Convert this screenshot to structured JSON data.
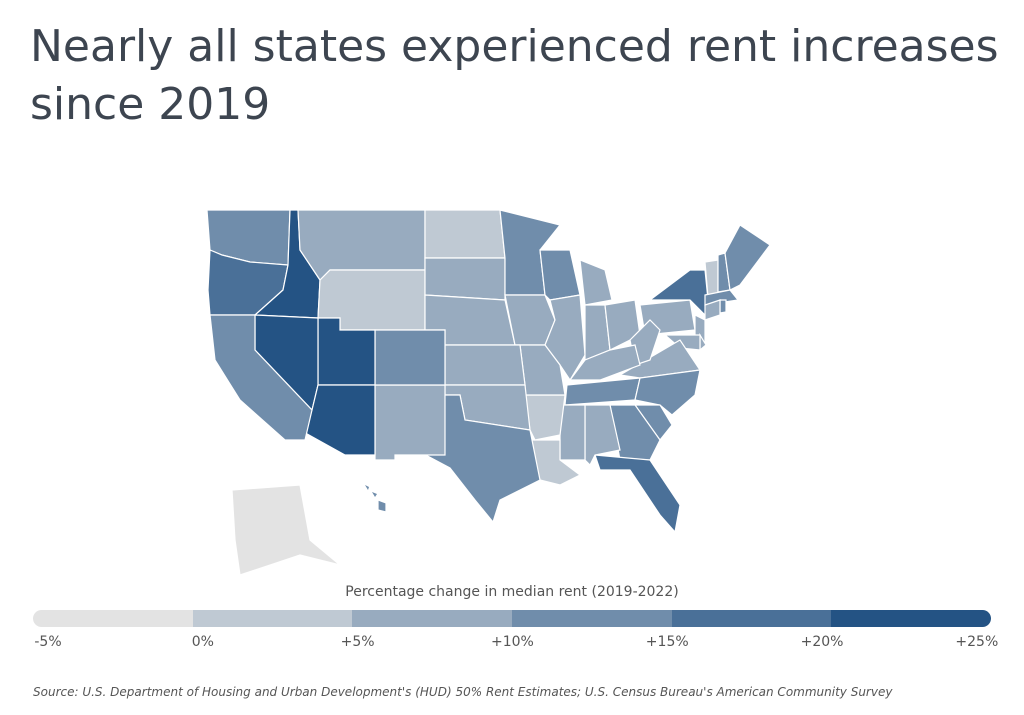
{
  "title": "Nearly all states experienced rent increases since 2019",
  "legend": {
    "title": "Percentage change in median rent (2019-2022)",
    "ticks": [
      "-5%",
      "0%",
      "+5%",
      "+10%",
      "+15%",
      "+20%",
      "+25%"
    ],
    "colors": [
      "#e3e3e3",
      "#bfc9d3",
      "#98abbf",
      "#708dab",
      "#4a7098",
      "#245384"
    ]
  },
  "source": "Source:  U.S. Department of Housing and Urban Development's (HUD) 50% Rent Estimates; U.S. Census Bureau's American Community Survey",
  "map_data": {
    "type": "choropleth",
    "bins": [
      "-5% to 0%",
      "0% to +5%",
      "+5% to +10%",
      "+10% to +15%",
      "+15% to +20%",
      "+20% to +25%"
    ],
    "states": {
      "WA": 3,
      "OR": 4,
      "ID": 5,
      "MT": 2,
      "ND": 1,
      "WY": 1,
      "SD": 2,
      "MN": 3,
      "WI": 3,
      "MI": 2,
      "NE": 2,
      "IA": 2,
      "IL": 2,
      "IN": 2,
      "OH": 2,
      "PA": 2,
      "NY": 4,
      "VT": 1,
      "NH": 3,
      "ME": 3,
      "MA": 3,
      "RI": 3,
      "CT": 2,
      "NJ": 2,
      "DE": 2,
      "MD": 2,
      "VA": 2,
      "WV": 2,
      "KY": 2,
      "TN": 3,
      "NC": 3,
      "SC": 3,
      "GA": 3,
      "FL": 4,
      "AL": 2,
      "MS": 2,
      "LA": 1,
      "AR": 1,
      "MO": 2,
      "KS": 2,
      "OK": 2,
      "TX": 3,
      "NM": 2,
      "CO": 3,
      "UT": 5,
      "NV": 5,
      "AZ": 5,
      "CA": 3,
      "AK": 0,
      "HI": 3
    }
  }
}
